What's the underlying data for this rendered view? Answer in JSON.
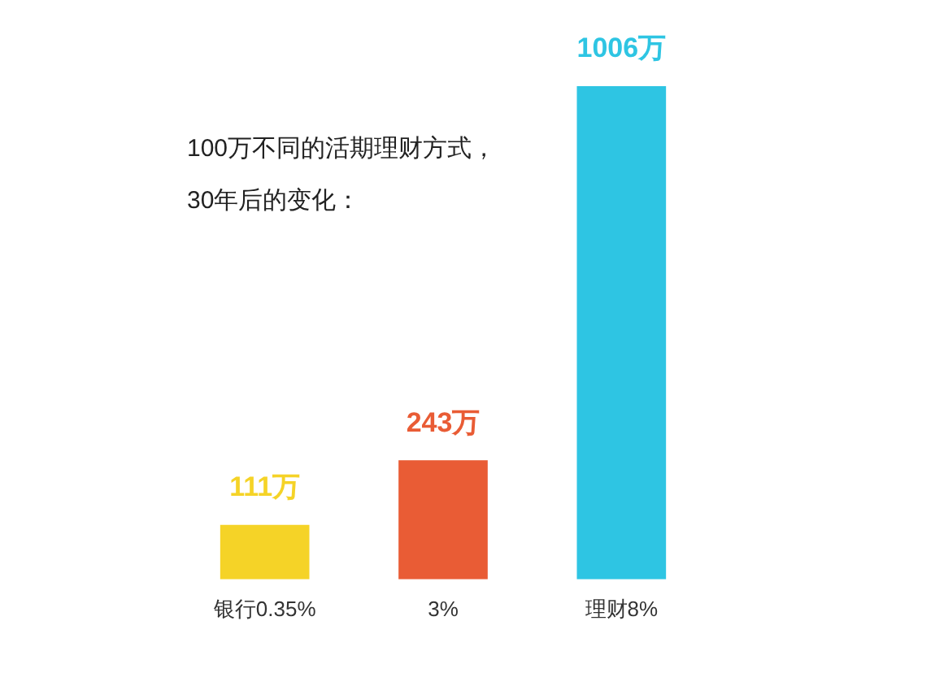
{
  "chart_data": {
    "type": "bar",
    "title": "100万不同的活期理财方式，\n30年后的变化：",
    "categories": [
      "银行0.35%",
      "3%",
      "理财8%"
    ],
    "values": [
      111,
      243,
      1006
    ],
    "colors": [
      "#f5d327",
      "#e95c35",
      "#2ec5e3"
    ],
    "value_labels": [
      "111万",
      "243万",
      "1006万"
    ],
    "grid": false,
    "legend": false
  }
}
